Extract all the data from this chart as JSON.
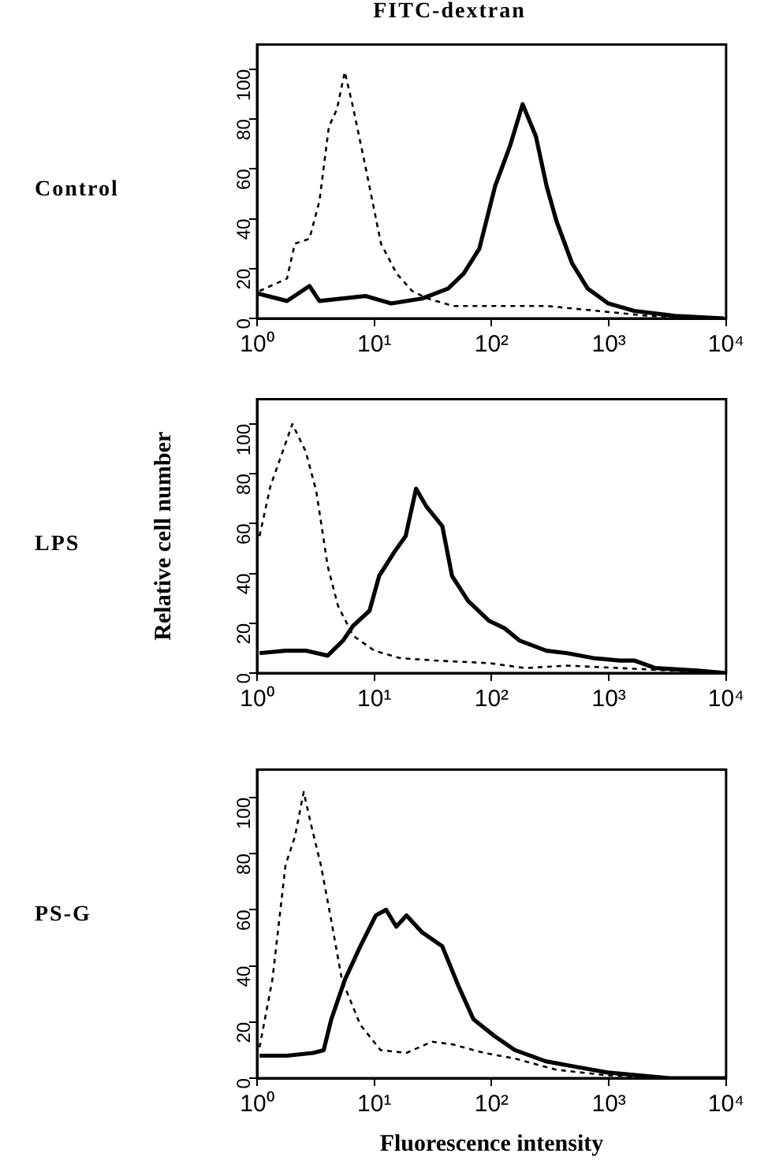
{
  "chart_data": [
    {
      "type": "line",
      "title": "FITC-dextran",
      "annotations": [
        "Control"
      ],
      "log": "x",
      "grid": false,
      "marker": "none",
      "xlim": [
        1,
        10000
      ],
      "xticks": [
        {
          "value": 1,
          "label": "10⁰"
        },
        {
          "value": 10,
          "label": "10¹"
        },
        {
          "value": 100,
          "label": "10²"
        },
        {
          "value": 1000,
          "label": "10³"
        },
        {
          "value": 10000,
          "label": "10⁴"
        }
      ],
      "ylim": [
        0,
        110
      ],
      "yticks": [
        0,
        20,
        40,
        60,
        80,
        100
      ],
      "series": [
        {
          "color": "#000000",
          "line_style": "dashed",
          "x": [
            1.05,
            1.8,
            2.1,
            2.8,
            3.4,
            4.1,
            4.8,
            5.6,
            6.5,
            8.4,
            11.4,
            15.5,
            21,
            28.5,
            47,
            107,
            295,
            810,
            2200,
            10000
          ],
          "values": [
            11,
            16,
            30,
            32,
            47,
            77,
            84,
            99,
            86,
            61,
            30,
            18,
            11,
            8,
            5,
            5,
            5,
            3,
            1,
            0
          ]
        },
        {
          "color": "#000000",
          "line_style": "solid",
          "x": [
            1.02,
            1.8,
            2.8,
            3.4,
            8.4,
            13.9,
            25.6,
            42.6,
            57.8,
            78.6,
            107,
            143,
            184,
            239,
            295,
            358,
            487,
            660,
            990,
            1650,
            3700,
            9600
          ],
          "values": [
            10,
            7,
            13,
            7,
            9,
            6,
            8,
            12,
            18,
            28,
            53,
            69,
            86,
            73,
            53,
            39,
            22,
            12,
            6,
            3,
            1,
            0
          ]
        }
      ]
    },
    {
      "type": "line",
      "annotations": [
        "LPS"
      ],
      "ylabel": "Relative cell number",
      "log": "x",
      "grid": false,
      "marker": "none",
      "xlim": [
        1,
        10000
      ],
      "xticks": [
        {
          "value": 1,
          "label": "10⁰"
        },
        {
          "value": 10,
          "label": "10¹"
        },
        {
          "value": 100,
          "label": "10²"
        },
        {
          "value": 1000,
          "label": "10³"
        },
        {
          "value": 10000,
          "label": "10⁴"
        }
      ],
      "ylim": [
        0,
        110
      ],
      "yticks": [
        0,
        20,
        40,
        60,
        80,
        100
      ],
      "series": [
        {
          "color": "#000000",
          "line_style": "dashed",
          "x": [
            1.05,
            1.3,
            1.6,
            2.0,
            2.6,
            3.2,
            4,
            4.9,
            6.6,
            10,
            16.6,
            34,
            95,
            194,
            440,
            1230,
            3400,
            10000
          ],
          "values": [
            55,
            75,
            87,
            100,
            89,
            73,
            43,
            27,
            15,
            9,
            6,
            5,
            4,
            2,
            3,
            2,
            1,
            0
          ]
        },
        {
          "color": "#000000",
          "line_style": "solid",
          "x": [
            1.05,
            1.75,
            2.6,
            4,
            5.4,
            6.6,
            9.1,
            11,
            15,
            18.5,
            22.7,
            27.7,
            38,
            46,
            63,
            95,
            129,
            174,
            293,
            440,
            740,
            1230,
            1660,
            2500,
            5700,
            10000
          ],
          "values": [
            8,
            9,
            9,
            7,
            13,
            19,
            25,
            39,
            49,
            55,
            74,
            67,
            59,
            39,
            29,
            21,
            18,
            13,
            9,
            8,
            6,
            5,
            5,
            2,
            1,
            0
          ]
        }
      ]
    },
    {
      "type": "line",
      "annotations": [
        "PS-G"
      ],
      "xlabel": "Fluorescence intensity",
      "log": "x",
      "grid": false,
      "marker": "none",
      "xlim": [
        1,
        10000
      ],
      "xticks": [
        {
          "value": 1,
          "label": "10⁰"
        },
        {
          "value": 10,
          "label": "10¹"
        },
        {
          "value": 100,
          "label": "10²"
        },
        {
          "value": 1000,
          "label": "10³"
        },
        {
          "value": 10000,
          "label": "10⁴"
        }
      ],
      "ylim": [
        0,
        110
      ],
      "yticks": [
        0,
        20,
        40,
        60,
        80,
        100
      ],
      "series": [
        {
          "color": "#000000",
          "line_style": "dashed",
          "x": [
            1.05,
            1.35,
            1.75,
            2.1,
            2.5,
            2.9,
            3.5,
            4.3,
            5.3,
            7.6,
            11.3,
            18.8,
            31,
            47,
            86,
            158,
            355,
            980,
            3300,
            10000
          ],
          "values": [
            11,
            35,
            76,
            86,
            102,
            90,
            76,
            56,
            35,
            19,
            10,
            9,
            13,
            12,
            9,
            7,
            3,
            1,
            0,
            0
          ]
        },
        {
          "color": "#000000",
          "line_style": "solid",
          "x": [
            1.05,
            1.8,
            3.0,
            3.7,
            4.3,
            5.6,
            7.6,
            10.3,
            12.6,
            15.4,
            18.8,
            25.5,
            38,
            52,
            70,
            106,
            158,
            290,
            530,
            980,
            3300,
            10000
          ],
          "values": [
            8,
            8,
            9,
            10,
            21,
            35,
            47,
            58,
            60,
            54,
            58,
            52,
            47,
            33,
            21,
            15,
            10,
            6,
            4,
            2,
            0,
            0
          ]
        }
      ]
    }
  ]
}
